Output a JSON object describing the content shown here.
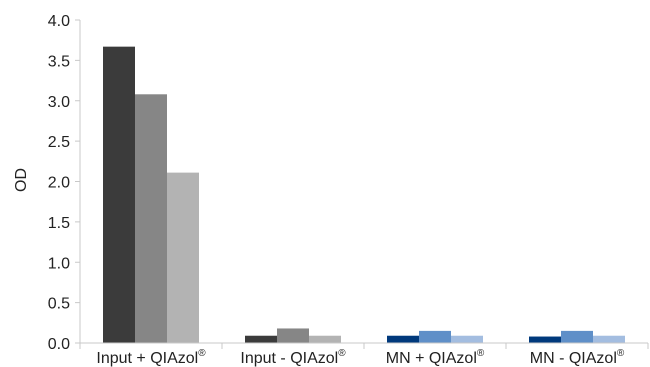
{
  "chart_data": {
    "type": "bar",
    "categories": [
      "Input + QIAzol",
      "Input - QIAzol",
      "MN + QIAzol",
      "MN - QIAzol"
    ],
    "category_superscript": "®",
    "ylabel": "OD",
    "ylim": [
      0,
      4.0
    ],
    "yticks": [
      "0.0",
      "0.5",
      "1.0",
      "1.5",
      "2.0",
      "2.5",
      "3.0",
      "3.5",
      "4.0"
    ],
    "grid": false,
    "series_values": [
      [
        3.67,
        0.09,
        0.09,
        0.08
      ],
      [
        3.08,
        0.18,
        0.15,
        0.15
      ],
      [
        2.11,
        0.09,
        0.09,
        0.09
      ]
    ],
    "bar_colors": [
      [
        "#3b3b3b",
        "#868686",
        "#b3b3b3"
      ],
      [
        "#3b3b3b",
        "#868686",
        "#b3b3b3"
      ],
      [
        "#00397c",
        "#5f8fc8",
        "#a3bde0"
      ],
      [
        "#00397c",
        "#5f8fc8",
        "#a3bde0"
      ]
    ],
    "axis_color": "#c8c8c8"
  }
}
